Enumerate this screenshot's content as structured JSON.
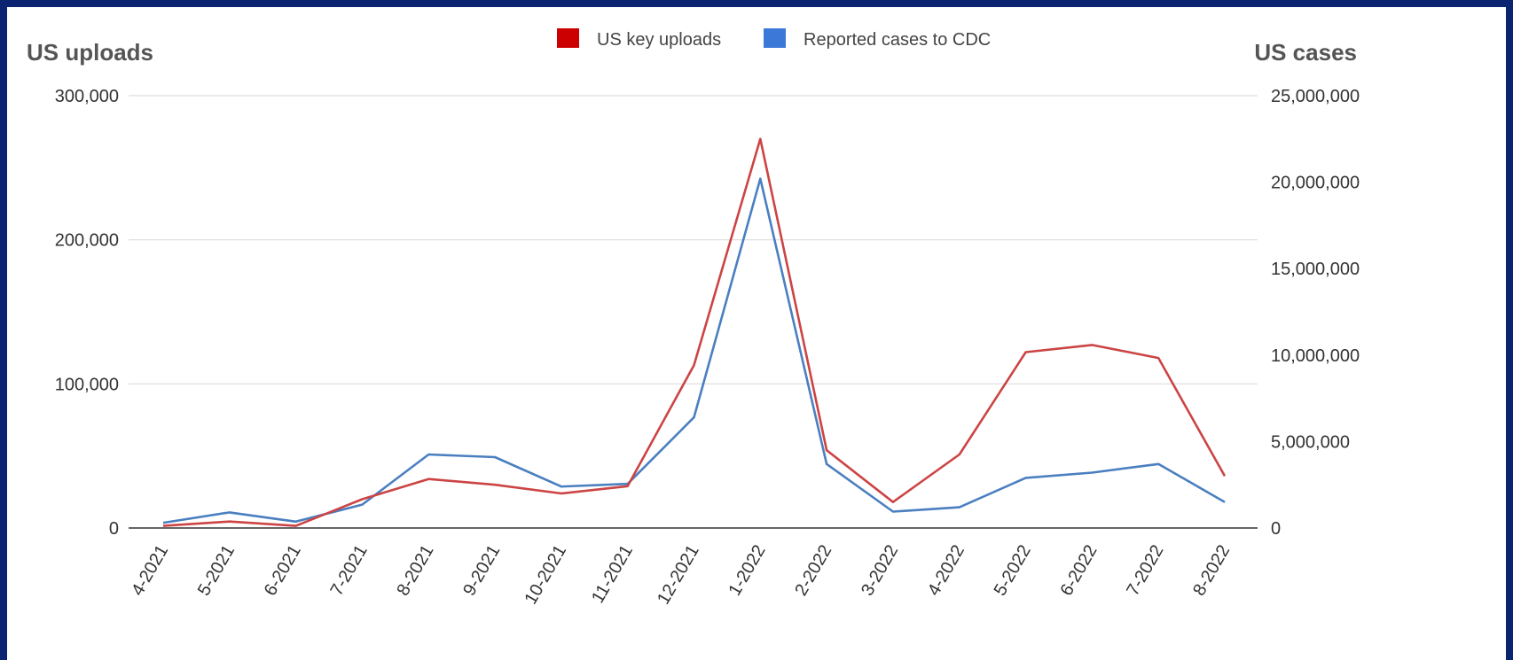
{
  "chart_data": {
    "type": "line",
    "left_axis_title": "US uploads",
    "right_axis_title": "US cases",
    "categories": [
      "4-2021",
      "5-2021",
      "6-2021",
      "7-2021",
      "8-2021",
      "9-2021",
      "10-2021",
      "11-2021",
      "12-2021",
      "1-2022",
      "2-2022",
      "3-2022",
      "4-2022",
      "5-2022",
      "6-2022",
      "7-2022",
      "8-2022"
    ],
    "left_axis": {
      "min": 0,
      "max": 300000,
      "ticks": [
        "0",
        "100,000",
        "200,000",
        "300,000"
      ]
    },
    "right_axis": {
      "min": 0,
      "max": 25000000,
      "ticks": [
        "0",
        "5,000,000",
        "10,000,000",
        "15,000,000",
        "20,000,000",
        "25,000,000"
      ]
    },
    "grid": true,
    "legend_position": "top-center",
    "series": [
      {
        "name": "US key uploads",
        "axis": "left",
        "color": "#cc4444",
        "legend_color": "#cc0000",
        "values": [
          1500,
          4500,
          1500,
          20000,
          34000,
          30000,
          24000,
          29000,
          113000,
          270000,
          54000,
          18000,
          51000,
          122000,
          127000,
          118000,
          36000
        ]
      },
      {
        "name": "Reported cases to CDC",
        "axis": "right",
        "color": "#4a7fc0",
        "legend_color": "#3c78d8",
        "values": [
          300000,
          900000,
          370000,
          1350000,
          4250000,
          4100000,
          2400000,
          2550000,
          6400000,
          20200000,
          3700000,
          950000,
          1200000,
          2900000,
          3200000,
          3700000,
          1500000
        ]
      }
    ]
  }
}
